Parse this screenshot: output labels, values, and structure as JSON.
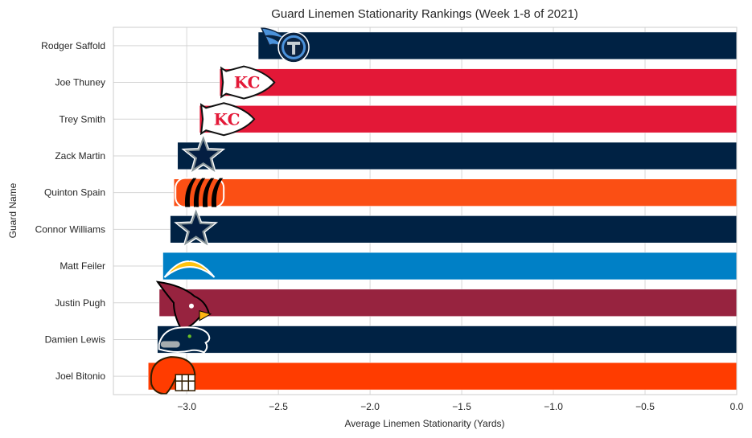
{
  "chart_data": {
    "type": "bar",
    "orientation": "horizontal",
    "title": "Guard Linemen Stationarity Rankings (Week 1-8 of 2021)",
    "xlabel": "Average Linemen Stationarity (Yards)",
    "ylabel": "Guard Name",
    "xlim": [
      -3.4,
      0.0
    ],
    "xticks": [
      -3.0,
      -2.5,
      -2.0,
      -1.5,
      -1.0,
      -0.5,
      0.0
    ],
    "xtick_labels": [
      "−3.0",
      "−2.5",
      "−2.0",
      "−1.5",
      "−1.0",
      "−0.5",
      "0.0"
    ],
    "grid": true,
    "categories": [
      "Rodger Saffold",
      "Joe Thuney",
      "Trey Smith",
      "Zack Martin",
      "Quinton Spain",
      "Connor Williams",
      "Matt Feiler",
      "Justin Pugh",
      "Damien Lewis",
      "Joel Bitonio"
    ],
    "values": [
      -2.61,
      -2.82,
      -2.93,
      -3.05,
      -3.07,
      -3.09,
      -3.13,
      -3.15,
      -3.16,
      -3.21
    ],
    "teams": [
      "Titans",
      "Chiefs",
      "Chiefs",
      "Cowboys",
      "Bengals",
      "Cowboys",
      "Chargers",
      "Cardinals",
      "Seahawks",
      "Browns"
    ],
    "logo_icons": [
      "titans-logo-icon",
      "chiefs-logo-icon",
      "chiefs-logo-icon",
      "cowboys-logo-icon",
      "bengals-logo-icon",
      "cowboys-logo-icon",
      "chargers-logo-icon",
      "cardinals-logo-icon",
      "seahawks-logo-icon",
      "browns-logo-icon"
    ],
    "colors": [
      "#002244",
      "#E31837",
      "#E31837",
      "#002244",
      "#FB4F14",
      "#002244",
      "#0080C6",
      "#97233F",
      "#002244",
      "#FF3C00"
    ]
  }
}
